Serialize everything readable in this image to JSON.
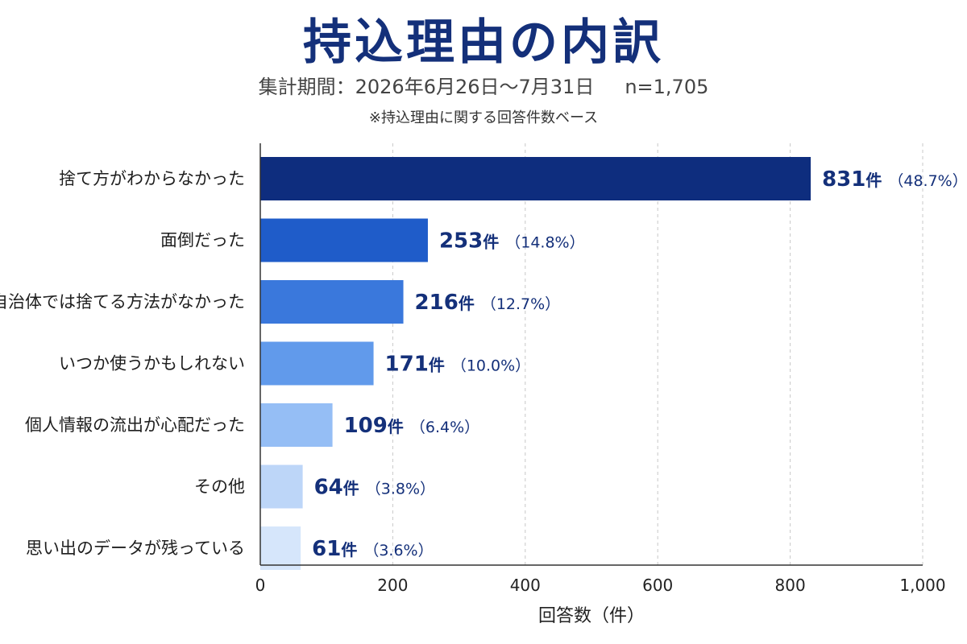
{
  "header": {
    "title": "持込理由の内訳",
    "period": "集計期間：2026年6月26日〜7月31日",
    "n": "n=1,705",
    "note": "※持込理由に関する回答件数ベース"
  },
  "chart_data": {
    "type": "bar",
    "orientation": "horizontal",
    "categories": [
      "捨て方がわからなかった",
      "面倒だった",
      "自治体では捨てる方法がなかった",
      "いつか使うかもしれない",
      "個人情報の流出が心配だった",
      "その他",
      "思い出のデータが残っている"
    ],
    "values": [
      831,
      253,
      216,
      171,
      109,
      64,
      61
    ],
    "percents": [
      "48.7%",
      "14.8%",
      "12.7%",
      "10.0%",
      "6.4%",
      "3.8%",
      "3.6%"
    ],
    "unit": "件",
    "colors": [
      "#0e2d7e",
      "#1f5cc9",
      "#3a78dc",
      "#619aeb",
      "#95bef5",
      "#bdd6f8",
      "#d6e6fb"
    ],
    "xlabel": "回答数（件）",
    "xlim": [
      0,
      1000
    ],
    "xticks": [
      0,
      200,
      400,
      600,
      800,
      1000
    ],
    "xtick_labels": [
      "0",
      "200",
      "400",
      "600",
      "800",
      "1,000"
    ],
    "grid": "vertical-dashed",
    "value_color": "#14307a"
  }
}
